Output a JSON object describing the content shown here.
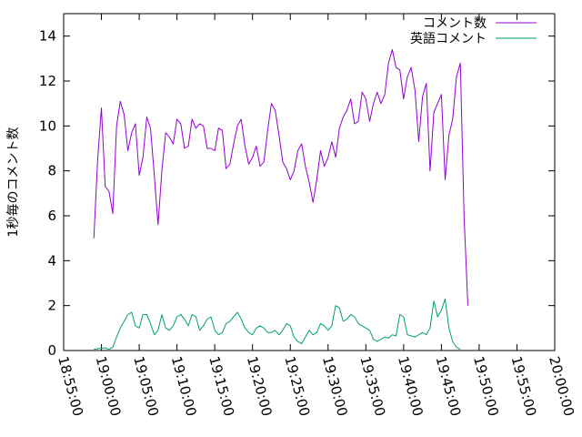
{
  "chart_data": {
    "type": "line",
    "title": "",
    "xlabel": "",
    "ylabel": "1秒毎のコメント数",
    "ylim": [
      0,
      15
    ],
    "yticks": [
      0,
      2,
      4,
      6,
      8,
      10,
      12,
      14
    ],
    "xlim": [
      "18:55:00",
      "20:00:00"
    ],
    "xticks": [
      "18:55:00",
      "19:00:00",
      "19:05:00",
      "19:10:00",
      "19:15:00",
      "19:20:00",
      "19:25:00",
      "19:30:00",
      "19:35:00",
      "19:40:00",
      "19:45:00",
      "19:50:00",
      "19:55:00",
      "20:00:00"
    ],
    "grid": false,
    "legend_position": "top-right",
    "series": [
      {
        "name": "コメント数",
        "color": "#9400d3",
        "points": [
          [
            "18:59:00",
            5.0
          ],
          [
            "18:59:30",
            8.5
          ],
          [
            "19:00:00",
            10.8
          ],
          [
            "19:00:30",
            7.3
          ],
          [
            "19:01:00",
            7.1
          ],
          [
            "19:01:30",
            6.1
          ],
          [
            "19:02:00",
            10.0
          ],
          [
            "19:02:30",
            11.1
          ],
          [
            "19:03:00",
            10.5
          ],
          [
            "19:03:30",
            8.9
          ],
          [
            "19:04:00",
            9.7
          ],
          [
            "19:04:30",
            10.1
          ],
          [
            "19:05:00",
            7.8
          ],
          [
            "19:05:30",
            8.6
          ],
          [
            "19:06:00",
            10.4
          ],
          [
            "19:06:30",
            9.9
          ],
          [
            "19:07:00",
            7.8
          ],
          [
            "19:07:30",
            5.6
          ],
          [
            "19:08:00",
            8.0
          ],
          [
            "19:08:30",
            9.7
          ],
          [
            "19:09:00",
            9.5
          ],
          [
            "19:09:30",
            9.2
          ],
          [
            "19:10:00",
            10.3
          ],
          [
            "19:10:30",
            10.1
          ],
          [
            "19:11:00",
            9.0
          ],
          [
            "19:11:30",
            9.1
          ],
          [
            "19:12:00",
            10.3
          ],
          [
            "19:12:30",
            9.9
          ],
          [
            "19:13:00",
            10.1
          ],
          [
            "19:13:30",
            10.0
          ],
          [
            "19:14:00",
            9.0
          ],
          [
            "19:14:30",
            9.0
          ],
          [
            "19:15:00",
            8.9
          ],
          [
            "19:15:30",
            9.9
          ],
          [
            "19:16:00",
            9.8
          ],
          [
            "19:16:30",
            8.1
          ],
          [
            "19:17:00",
            8.3
          ],
          [
            "19:17:30",
            9.2
          ],
          [
            "19:18:00",
            10.0
          ],
          [
            "19:18:30",
            10.3
          ],
          [
            "19:19:00",
            9.1
          ],
          [
            "19:19:30",
            8.3
          ],
          [
            "19:20:00",
            8.6
          ],
          [
            "19:20:30",
            9.1
          ],
          [
            "19:21:00",
            8.2
          ],
          [
            "19:21:30",
            8.4
          ],
          [
            "19:22:00",
            9.8
          ],
          [
            "19:22:30",
            11.0
          ],
          [
            "19:23:00",
            10.7
          ],
          [
            "19:23:30",
            9.6
          ],
          [
            "19:24:00",
            8.4
          ],
          [
            "19:24:30",
            8.1
          ],
          [
            "19:25:00",
            7.6
          ],
          [
            "19:25:30",
            8.0
          ],
          [
            "19:26:00",
            8.9
          ],
          [
            "19:26:30",
            9.2
          ],
          [
            "19:27:00",
            8.2
          ],
          [
            "19:27:30",
            7.5
          ],
          [
            "19:28:00",
            6.6
          ],
          [
            "19:28:30",
            7.6
          ],
          [
            "19:29:00",
            8.9
          ],
          [
            "19:29:30",
            8.2
          ],
          [
            "19:30:00",
            8.6
          ],
          [
            "19:30:30",
            9.3
          ],
          [
            "19:31:00",
            8.6
          ],
          [
            "19:31:30",
            9.9
          ],
          [
            "19:32:00",
            10.4
          ],
          [
            "19:32:30",
            10.7
          ],
          [
            "19:33:00",
            11.2
          ],
          [
            "19:33:30",
            10.1
          ],
          [
            "19:34:00",
            10.2
          ],
          [
            "19:34:30",
            11.5
          ],
          [
            "19:35:00",
            11.2
          ],
          [
            "19:35:30",
            10.2
          ],
          [
            "19:36:00",
            11.0
          ],
          [
            "19:36:30",
            11.5
          ],
          [
            "19:37:00",
            11.0
          ],
          [
            "19:37:30",
            11.4
          ],
          [
            "19:38:00",
            12.8
          ],
          [
            "19:38:30",
            13.4
          ],
          [
            "19:39:00",
            12.6
          ],
          [
            "19:39:30",
            12.5
          ],
          [
            "19:40:00",
            11.2
          ],
          [
            "19:40:30",
            12.2
          ],
          [
            "19:41:00",
            12.6
          ],
          [
            "19:41:30",
            11.6
          ],
          [
            "19:42:00",
            9.3
          ],
          [
            "19:42:30",
            11.3
          ],
          [
            "19:43:00",
            11.9
          ],
          [
            "19:43:30",
            8.0
          ],
          [
            "19:44:00",
            10.6
          ],
          [
            "19:44:30",
            11.0
          ],
          [
            "19:45:00",
            11.4
          ],
          [
            "19:45:30",
            7.6
          ],
          [
            "19:46:00",
            9.6
          ],
          [
            "19:46:30",
            10.3
          ],
          [
            "19:47:00",
            12.2
          ],
          [
            "19:47:30",
            12.8
          ],
          [
            "19:48:00",
            6.0
          ],
          [
            "19:48:30",
            2.0
          ]
        ]
      },
      {
        "name": "英語コメント",
        "color": "#009e73",
        "points": [
          [
            "18:59:00",
            0.05
          ],
          [
            "18:59:30",
            0.08
          ],
          [
            "19:00:00",
            0.1
          ],
          [
            "19:00:30",
            0.12
          ],
          [
            "19:01:00",
            0.05
          ],
          [
            "19:01:30",
            0.15
          ],
          [
            "19:02:00",
            0.6
          ],
          [
            "19:02:30",
            1.0
          ],
          [
            "19:03:00",
            1.3
          ],
          [
            "19:03:30",
            1.6
          ],
          [
            "19:04:00",
            1.7
          ],
          [
            "19:04:30",
            1.1
          ],
          [
            "19:05:00",
            1.0
          ],
          [
            "19:05:30",
            1.6
          ],
          [
            "19:06:00",
            1.6
          ],
          [
            "19:06:30",
            1.2
          ],
          [
            "19:07:00",
            0.7
          ],
          [
            "19:07:30",
            0.9
          ],
          [
            "19:08:00",
            1.6
          ],
          [
            "19:08:30",
            1.0
          ],
          [
            "19:09:00",
            0.9
          ],
          [
            "19:09:30",
            1.1
          ],
          [
            "19:10:00",
            1.5
          ],
          [
            "19:10:30",
            1.6
          ],
          [
            "19:11:00",
            1.4
          ],
          [
            "19:11:30",
            1.1
          ],
          [
            "19:12:00",
            1.6
          ],
          [
            "19:12:30",
            1.5
          ],
          [
            "19:13:00",
            0.9
          ],
          [
            "19:13:30",
            1.1
          ],
          [
            "19:14:00",
            1.4
          ],
          [
            "19:14:30",
            1.5
          ],
          [
            "19:15:00",
            0.9
          ],
          [
            "19:15:30",
            0.7
          ],
          [
            "19:16:00",
            0.8
          ],
          [
            "19:16:30",
            1.2
          ],
          [
            "19:17:00",
            1.3
          ],
          [
            "19:17:30",
            1.5
          ],
          [
            "19:18:00",
            1.7
          ],
          [
            "19:18:30",
            1.4
          ],
          [
            "19:19:00",
            1.0
          ],
          [
            "19:19:30",
            0.8
          ],
          [
            "19:20:00",
            0.7
          ],
          [
            "19:20:30",
            1.0
          ],
          [
            "19:21:00",
            1.1
          ],
          [
            "19:21:30",
            1.0
          ],
          [
            "19:22:00",
            0.8
          ],
          [
            "19:22:30",
            0.8
          ],
          [
            "19:23:00",
            0.9
          ],
          [
            "19:23:30",
            0.7
          ],
          [
            "19:24:00",
            0.9
          ],
          [
            "19:24:30",
            1.2
          ],
          [
            "19:25:00",
            1.1
          ],
          [
            "19:25:30",
            0.6
          ],
          [
            "19:26:00",
            0.4
          ],
          [
            "19:26:30",
            0.3
          ],
          [
            "19:27:00",
            0.6
          ],
          [
            "19:27:30",
            0.9
          ],
          [
            "19:28:00",
            0.7
          ],
          [
            "19:28:30",
            0.8
          ],
          [
            "19:29:00",
            1.2
          ],
          [
            "19:29:30",
            1.1
          ],
          [
            "19:30:00",
            0.9
          ],
          [
            "19:30:30",
            1.1
          ],
          [
            "19:31:00",
            2.0
          ],
          [
            "19:31:30",
            1.9
          ],
          [
            "19:32:00",
            1.3
          ],
          [
            "19:32:30",
            1.4
          ],
          [
            "19:33:00",
            1.6
          ],
          [
            "19:33:30",
            1.5
          ],
          [
            "19:34:00",
            1.2
          ],
          [
            "19:34:30",
            1.1
          ],
          [
            "19:35:00",
            1.0
          ],
          [
            "19:35:30",
            0.9
          ],
          [
            "19:36:00",
            0.5
          ],
          [
            "19:36:30",
            0.4
          ],
          [
            "19:37:00",
            0.5
          ],
          [
            "19:37:30",
            0.6
          ],
          [
            "19:38:00",
            0.55
          ],
          [
            "19:38:30",
            0.7
          ],
          [
            "19:39:00",
            0.65
          ],
          [
            "19:39:30",
            1.6
          ],
          [
            "19:40:00",
            1.5
          ],
          [
            "19:40:30",
            0.7
          ],
          [
            "19:41:00",
            0.65
          ],
          [
            "19:41:30",
            0.6
          ],
          [
            "19:42:00",
            0.7
          ],
          [
            "19:42:30",
            0.8
          ],
          [
            "19:43:00",
            0.7
          ],
          [
            "19:43:30",
            1.0
          ],
          [
            "19:44:00",
            2.2
          ],
          [
            "19:44:30",
            1.5
          ],
          [
            "19:45:00",
            1.8
          ],
          [
            "19:45:30",
            2.3
          ],
          [
            "19:46:00",
            1.0
          ],
          [
            "19:46:30",
            0.4
          ],
          [
            "19:47:00",
            0.15
          ],
          [
            "19:47:30",
            0.05
          ]
        ]
      }
    ]
  }
}
